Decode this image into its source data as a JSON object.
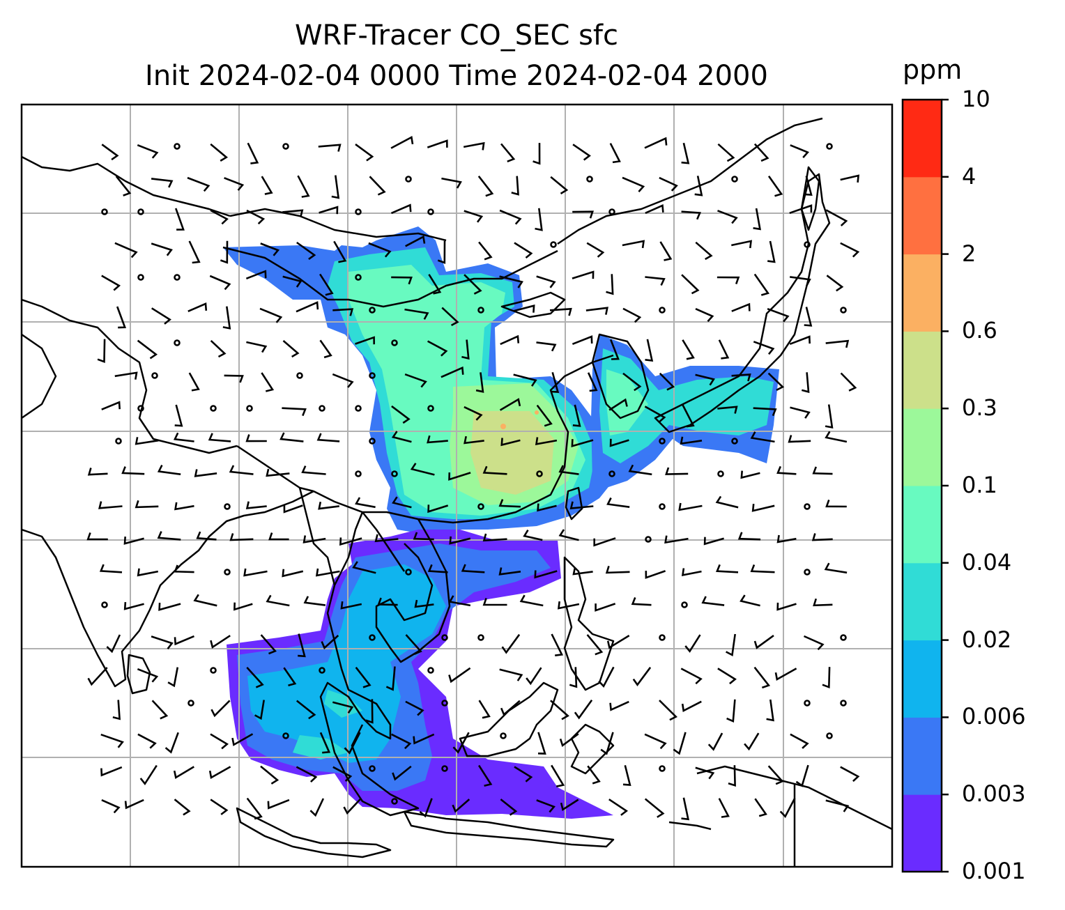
{
  "title": {
    "line1": "WRF-Tracer CO_SEC sfc",
    "line2": "Init 2024-02-04 0000 Time 2024-02-04 2000"
  },
  "colorbar": {
    "unit": "ppm",
    "levels": [
      "0.001",
      "0.003",
      "0.006",
      "0.02",
      "0.04",
      "0.1",
      "0.3",
      "0.6",
      "2",
      "4",
      "10"
    ],
    "colors": [
      "#6a2cff",
      "#3a78f5",
      "#10b4ee",
      "#30dcd6",
      "#68fac0",
      "#9cf89a",
      "#cce08a",
      "#fbb062",
      "#ff7040",
      "#ff2a14"
    ]
  },
  "map": {
    "grid": "on",
    "features": [
      "coastlines",
      "country-borders",
      "wind-barbs",
      "tracer-fill"
    ]
  }
}
